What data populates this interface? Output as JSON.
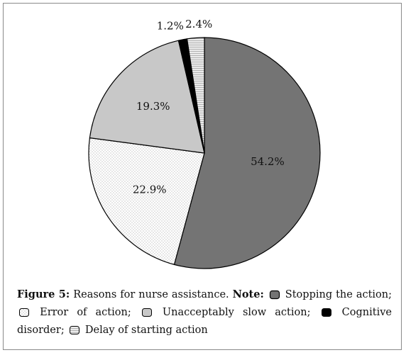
{
  "chart_data": {
    "type": "pie",
    "categories": [
      "Stopping the action",
      "Error of action",
      "Unacceptably slow action",
      "Cognitive disorder",
      "Delay of starting action"
    ],
    "values": [
      54.2,
      22.9,
      19.3,
      1.2,
      2.4
    ],
    "labels": [
      "54.2%",
      "22.9%",
      "19.3%",
      "1.2%",
      "2.4%"
    ],
    "colors": [
      "#747474",
      "#ffffff",
      "#c8c8c8",
      "#000000",
      "#e9e9e9"
    ],
    "patterns": [
      "solid",
      "dots",
      "solid",
      "solid",
      "lines"
    ]
  },
  "caption": {
    "figure_label": "Figure 5:",
    "title_text": " Reasons for nurse assistance. ",
    "note_label": "Note:",
    "items": [
      {
        "text": " Stopping the action;"
      },
      {
        "text": " Error of action;"
      },
      {
        "text": " Unacceptably slow action;"
      },
      {
        "text": " Cognitive disorder;"
      },
      {
        "text": " Delay of starting action"
      }
    ]
  }
}
